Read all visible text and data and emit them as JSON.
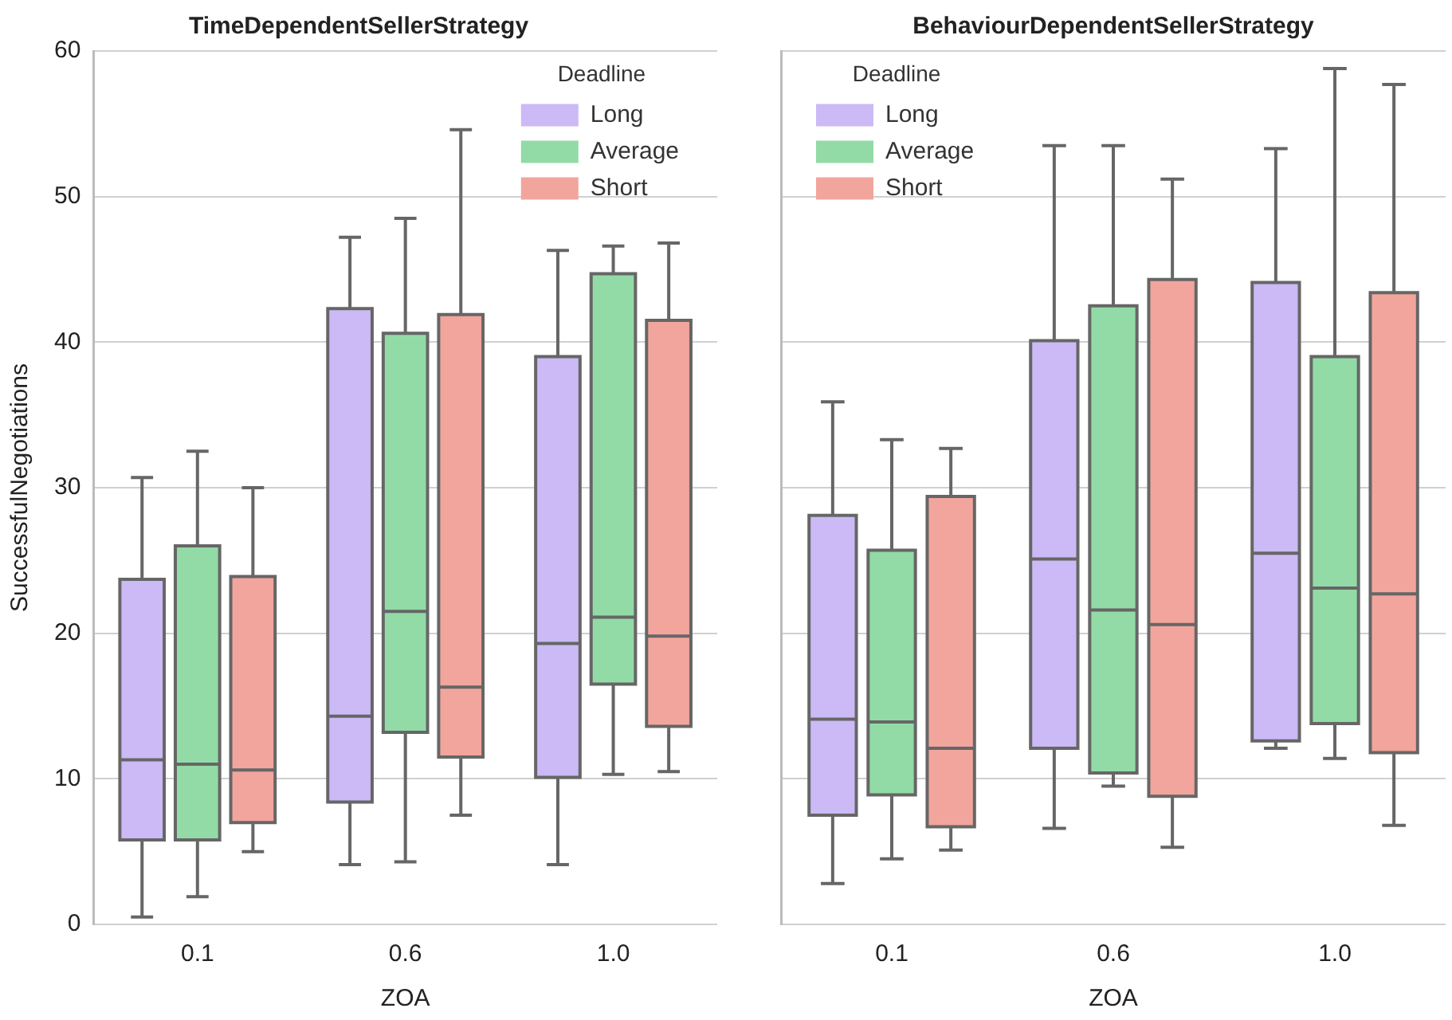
{
  "chart_data": [
    {
      "type": "box",
      "title": "TimeDependentSellerStrategy",
      "xlabel": "ZOA",
      "ylabel": "SuccessfulNegotiations",
      "legend_title": "Deadline",
      "legend": "top right",
      "grid": "y",
      "categories": [
        "0.1",
        "0.6",
        "1.0"
      ],
      "ylim": [
        0,
        60
      ],
      "yticks": [
        0,
        10,
        20,
        30,
        40,
        50,
        60
      ],
      "series": [
        {
          "name": "Long",
          "color": "#cbbaf6",
          "boxes": [
            {
              "low": 0.5,
              "q1": 5.8,
              "median": 11.3,
              "q3": 23.7,
              "high": 30.7
            },
            {
              "low": 4.1,
              "q1": 8.4,
              "median": 14.3,
              "q3": 42.3,
              "high": 47.2
            },
            {
              "low": 4.1,
              "q1": 10.1,
              "median": 19.3,
              "q3": 39,
              "high": 46.3
            }
          ]
        },
        {
          "name": "Average",
          "color": "#92dba6",
          "boxes": [
            {
              "low": 1.9,
              "q1": 5.8,
              "median": 11,
              "q3": 26,
              "high": 32.5
            },
            {
              "low": 4.3,
              "q1": 13.2,
              "median": 21.5,
              "q3": 40.6,
              "high": 48.5
            },
            {
              "low": 10.3,
              "q1": 16.5,
              "median": 21.1,
              "q3": 44.7,
              "high": 46.6
            }
          ]
        },
        {
          "name": "Short",
          "color": "#f2a59d",
          "boxes": [
            {
              "low": 5,
              "q1": 7,
              "median": 10.6,
              "q3": 23.9,
              "high": 30
            },
            {
              "low": 7.5,
              "q1": 11.5,
              "median": 16.3,
              "q3": 41.9,
              "high": 54.6
            },
            {
              "low": 10.5,
              "q1": 13.6,
              "median": 19.8,
              "q3": 41.5,
              "high": 46.8
            }
          ]
        }
      ]
    },
    {
      "type": "box",
      "title": "BehaviourDependentSellerStrategy",
      "xlabel": "ZOA",
      "legend_title": "Deadline",
      "legend": "top left",
      "grid": "y",
      "tick_labels": "x",
      "categories": [
        "0.1",
        "0.6",
        "1.0"
      ],
      "ylim": [
        0,
        60
      ],
      "yticks": [
        0,
        10,
        20,
        30,
        40,
        50,
        60
      ],
      "series": [
        {
          "name": "Long",
          "color": "#cbbaf6",
          "boxes": [
            {
              "low": 2.8,
              "q1": 7.5,
              "median": 14.1,
              "q3": 28.1,
              "high": 35.9
            },
            {
              "low": 6.6,
              "q1": 12.1,
              "median": 25.1,
              "q3": 40.1,
              "high": 53.5
            },
            {
              "low": 12.1,
              "q1": 12.6,
              "median": 25.5,
              "q3": 44.1,
              "high": 53.3
            }
          ]
        },
        {
          "name": "Average",
          "color": "#92dba6",
          "boxes": [
            {
              "low": 4.5,
              "q1": 8.9,
              "median": 13.9,
              "q3": 25.7,
              "high": 33.3
            },
            {
              "low": 9.5,
              "q1": 10.4,
              "median": 21.6,
              "q3": 42.5,
              "high": 53.5
            },
            {
              "low": 11.4,
              "q1": 13.8,
              "median": 23.1,
              "q3": 39,
              "high": 58.8
            }
          ]
        },
        {
          "name": "Short",
          "color": "#f2a59d",
          "boxes": [
            {
              "low": 5.1,
              "q1": 6.7,
              "median": 12.1,
              "q3": 29.4,
              "high": 32.7
            },
            {
              "low": 5.3,
              "q1": 8.8,
              "median": 20.6,
              "q3": 44.3,
              "high": 51.2
            },
            {
              "low": 6.8,
              "q1": 11.8,
              "median": 22.7,
              "q3": 43.4,
              "high": 57.7
            }
          ]
        }
      ]
    }
  ]
}
